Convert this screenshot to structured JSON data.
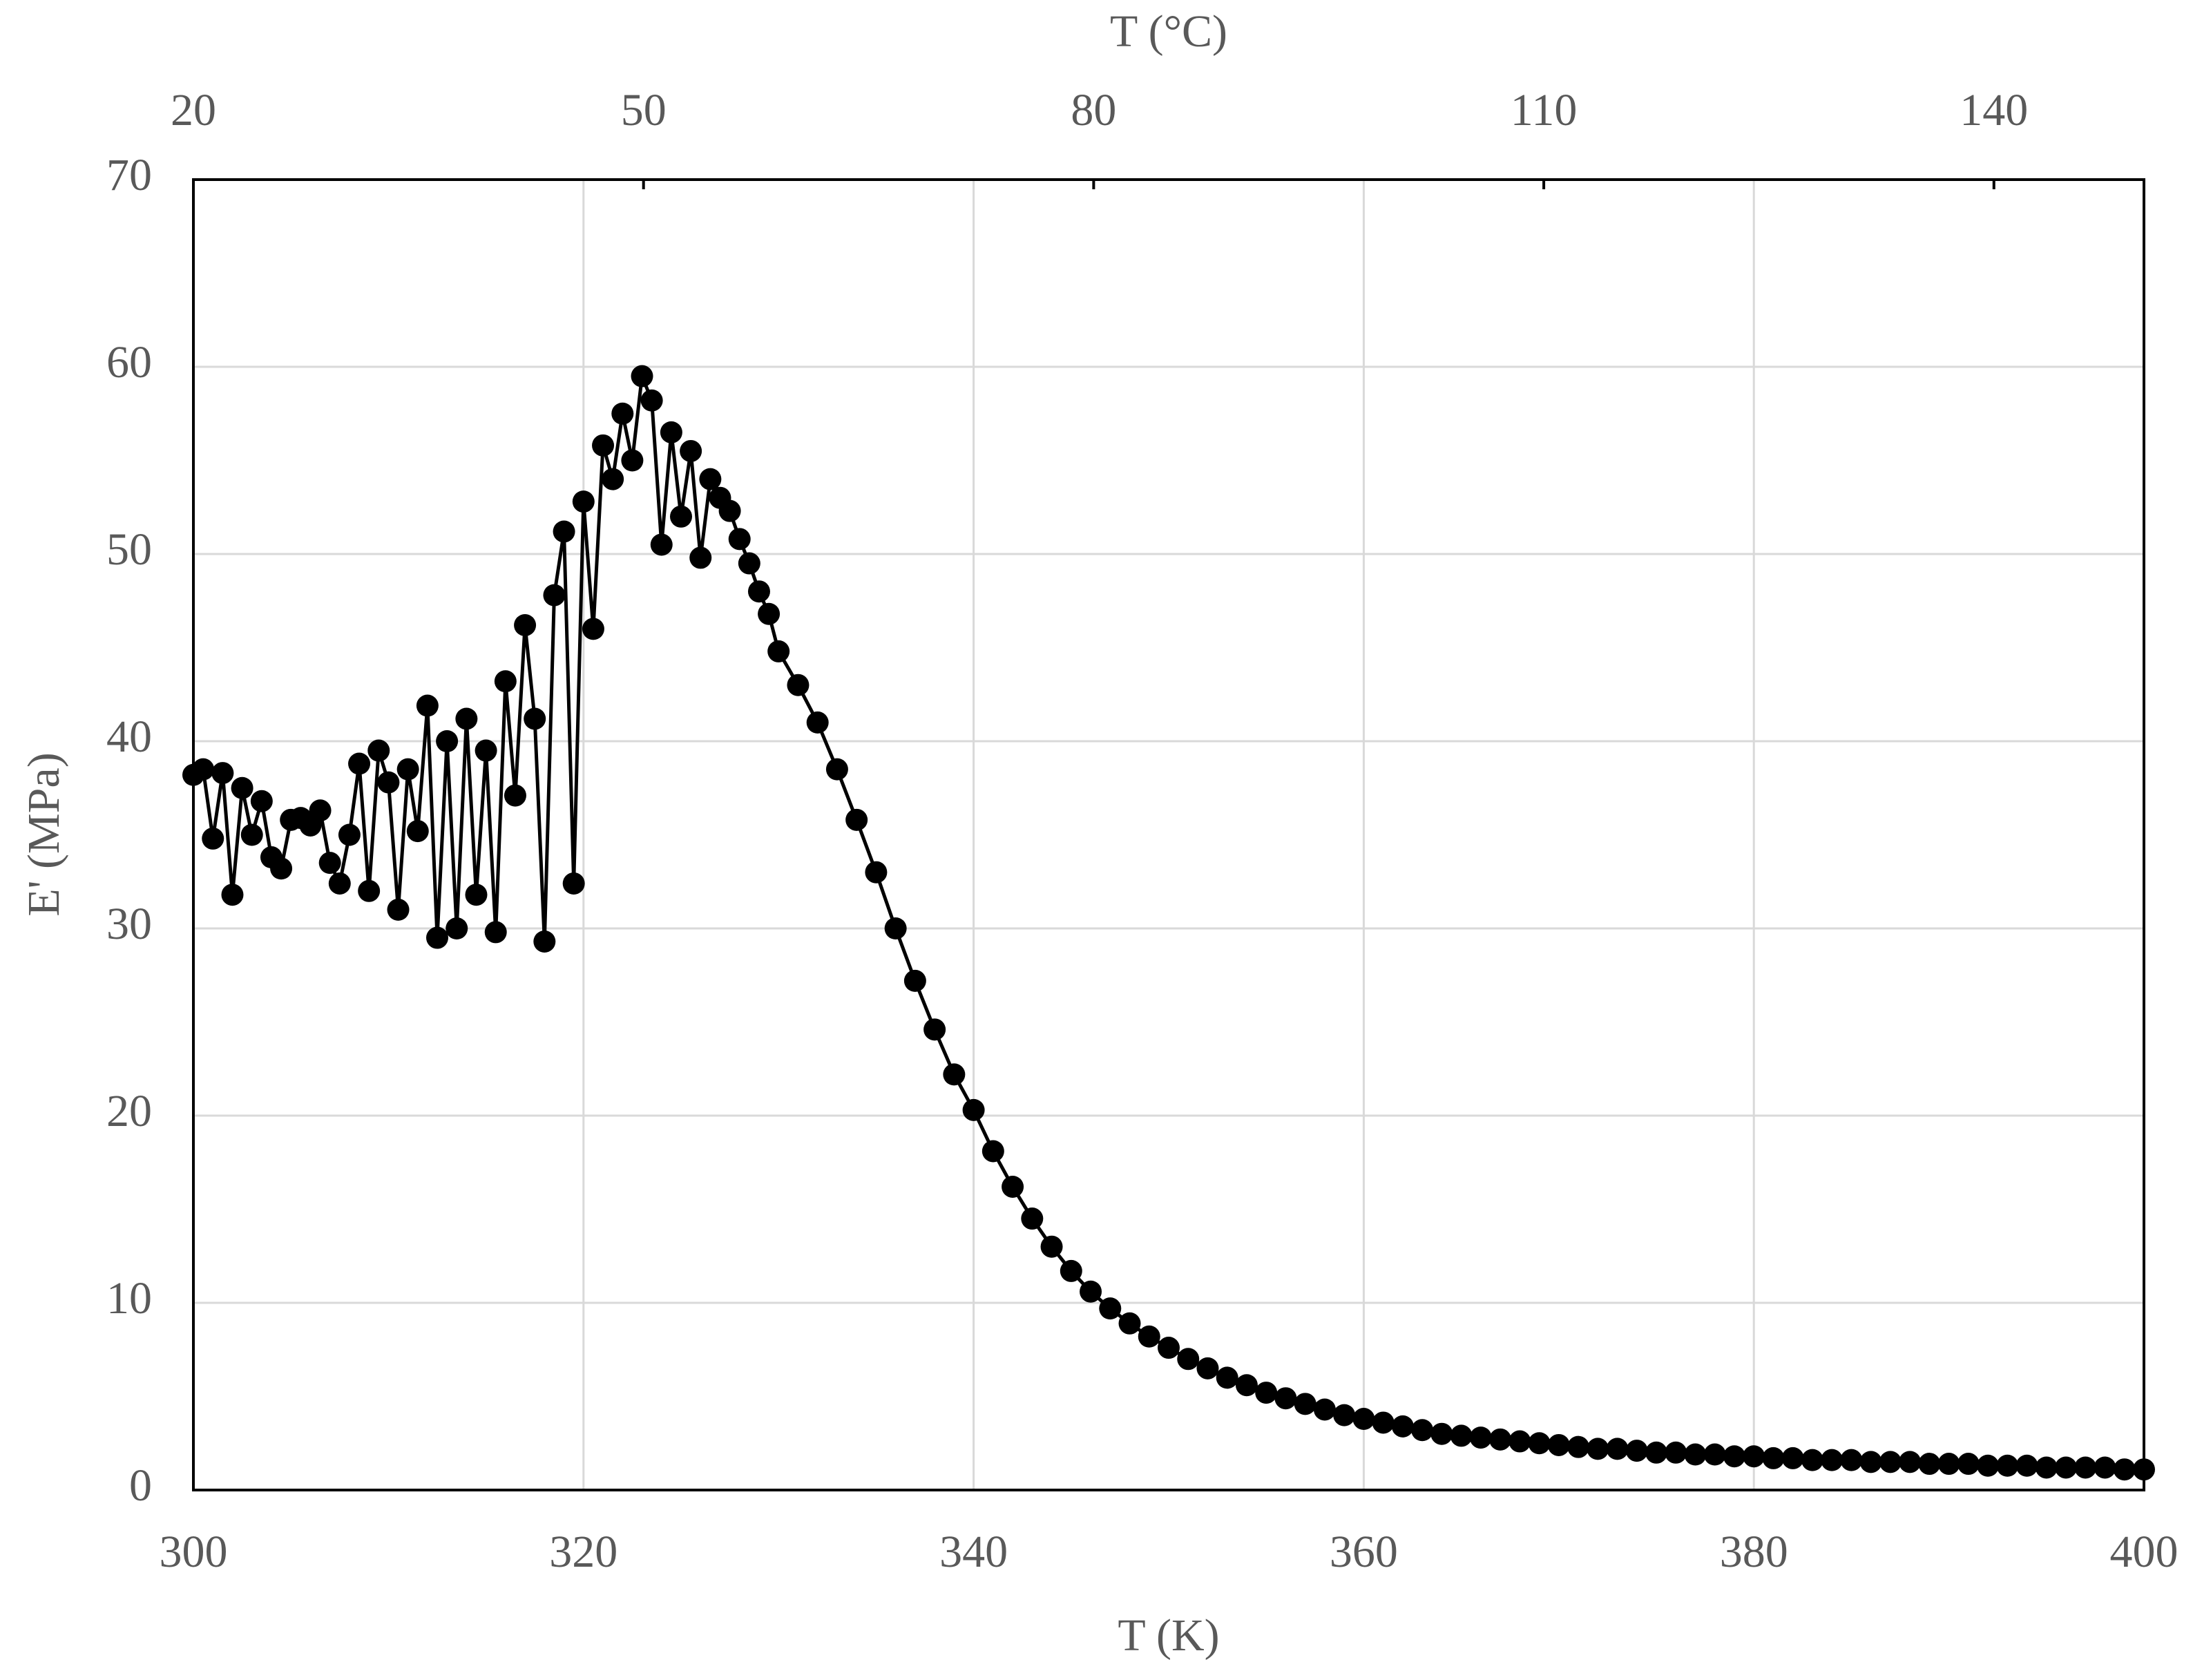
{
  "chart_data": {
    "type": "line",
    "xlabel": "T (K)",
    "ylabel": "E' (MPa)",
    "x2label": "T (°C)",
    "xlim": [
      300,
      400
    ],
    "xticks": [
      300,
      320,
      340,
      360,
      380,
      400
    ],
    "x2lim": [
      20,
      150
    ],
    "x2ticks": [
      20,
      50,
      80,
      110,
      140
    ],
    "ylim": [
      0,
      70
    ],
    "yticks": [
      0,
      10,
      20,
      30,
      40,
      50,
      60,
      70
    ],
    "grid": true,
    "x": [
      300,
      300.5,
      301,
      301.5,
      302,
      302.5,
      303,
      303.5,
      304,
      304.5,
      305,
      305.5,
      306,
      306.5,
      307,
      307.5,
      308,
      308.5,
      309,
      309.5,
      310,
      310.5,
      311,
      311.5,
      312,
      312.5,
      313,
      313.5,
      314,
      314.5,
      315,
      315.5,
      316,
      316.5,
      317,
      317.5,
      318,
      318.5,
      319,
      319.5,
      320,
      320.5,
      321,
      321.5,
      322,
      322.5,
      323,
      323.5,
      324,
      324.5,
      325,
      325.5,
      326,
      326.5,
      327,
      327.5,
      328,
      328.5,
      329,
      329.5,
      330,
      331,
      332,
      333,
      334,
      335,
      336,
      337,
      338,
      339,
      340,
      341,
      342,
      343,
      344,
      345,
      346,
      347,
      348,
      349,
      350,
      351,
      352,
      353,
      354,
      355,
      356,
      357,
      358,
      359,
      360,
      361,
      362,
      363,
      364,
      365,
      366,
      367,
      368,
      369,
      370,
      371,
      372,
      373,
      374,
      375,
      376,
      377,
      378,
      379,
      380,
      381,
      382,
      383,
      384,
      385,
      386,
      387,
      388,
      389,
      390,
      391,
      392,
      393,
      394,
      395,
      396,
      397,
      398,
      399,
      400
    ],
    "series": [
      {
        "color": "#000000",
        "values": [
          38.2,
          38.5,
          34.8,
          38.3,
          31.8,
          37.5,
          35.0,
          36.8,
          33.8,
          33.2,
          35.8,
          35.9,
          35.5,
          36.3,
          33.5,
          32.4,
          35.0,
          38.8,
          32.0,
          39.5,
          37.8,
          31.0,
          38.5,
          35.2,
          41.9,
          29.5,
          40.0,
          30.0,
          41.2,
          31.8,
          39.5,
          29.8,
          43.2,
          37.1,
          46.2,
          41.2,
          29.3,
          47.8,
          51.2,
          32.4,
          52.8,
          46.0,
          55.8,
          54.0,
          57.5,
          55.0,
          59.5,
          58.2,
          50.5,
          56.5,
          52.0,
          55.5,
          49.8,
          54.0,
          53.0,
          52.3,
          50.8,
          49.5,
          48.0,
          46.8,
          44.8,
          43.0,
          41.0,
          38.5,
          35.8,
          33.0,
          30.0,
          27.2,
          24.6,
          22.2,
          20.3,
          18.1,
          16.2,
          14.5,
          13.0,
          11.7,
          10.6,
          9.7,
          8.9,
          8.2,
          7.6,
          7.0,
          6.5,
          6.0,
          5.6,
          5.2,
          4.9,
          4.6,
          4.3,
          4.0,
          3.8,
          3.6,
          3.4,
          3.2,
          3.0,
          2.9,
          2.8,
          2.7,
          2.6,
          2.5,
          2.4,
          2.3,
          2.2,
          2.2,
          2.1,
          2.0,
          2.0,
          1.9,
          1.9,
          1.8,
          1.8,
          1.7,
          1.7,
          1.6,
          1.6,
          1.6,
          1.5,
          1.5,
          1.5,
          1.4,
          1.4,
          1.4,
          1.3,
          1.3,
          1.3,
          1.2,
          1.2,
          1.2,
          1.2,
          1.1,
          1.1
        ]
      }
    ]
  }
}
